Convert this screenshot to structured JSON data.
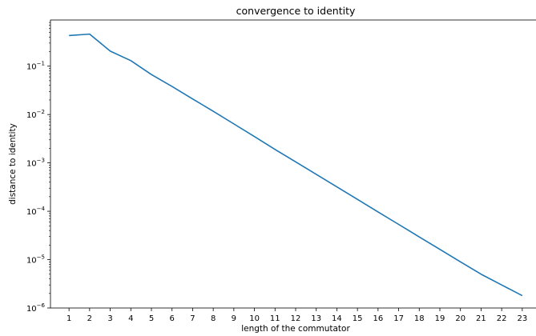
{
  "chart_data": {
    "type": "line",
    "title": "convergence to identity",
    "xlabel": "length of the commutator",
    "ylabel": "distance to identity",
    "yscale": "log",
    "x": [
      1,
      2,
      3,
      4,
      5,
      6,
      7,
      8,
      9,
      10,
      11,
      12,
      13,
      14,
      15,
      16,
      17,
      18,
      19,
      20,
      21,
      22,
      23
    ],
    "y_tick_labels": [
      "10^-6",
      "10^-5",
      "10^-4",
      "10^-3",
      "10^-2",
      "10^-1"
    ],
    "ylim": [
      1e-06,
      0.9
    ],
    "xlim": [
      0.1,
      23.9
    ],
    "grid": false,
    "series": [
      {
        "color": "#1f77b4",
        "values": [
          0.43,
          0.46,
          0.205,
          0.13,
          0.067,
          0.038,
          0.021,
          0.0117,
          0.0064,
          0.0035,
          0.0019,
          0.00105,
          0.00058,
          0.00032,
          0.000176,
          9.7e-05,
          5.35e-05,
          2.95e-05,
          1.63e-05,
          9e-06,
          5e-06,
          3e-06,
          1.8e-06
        ]
      }
    ]
  }
}
